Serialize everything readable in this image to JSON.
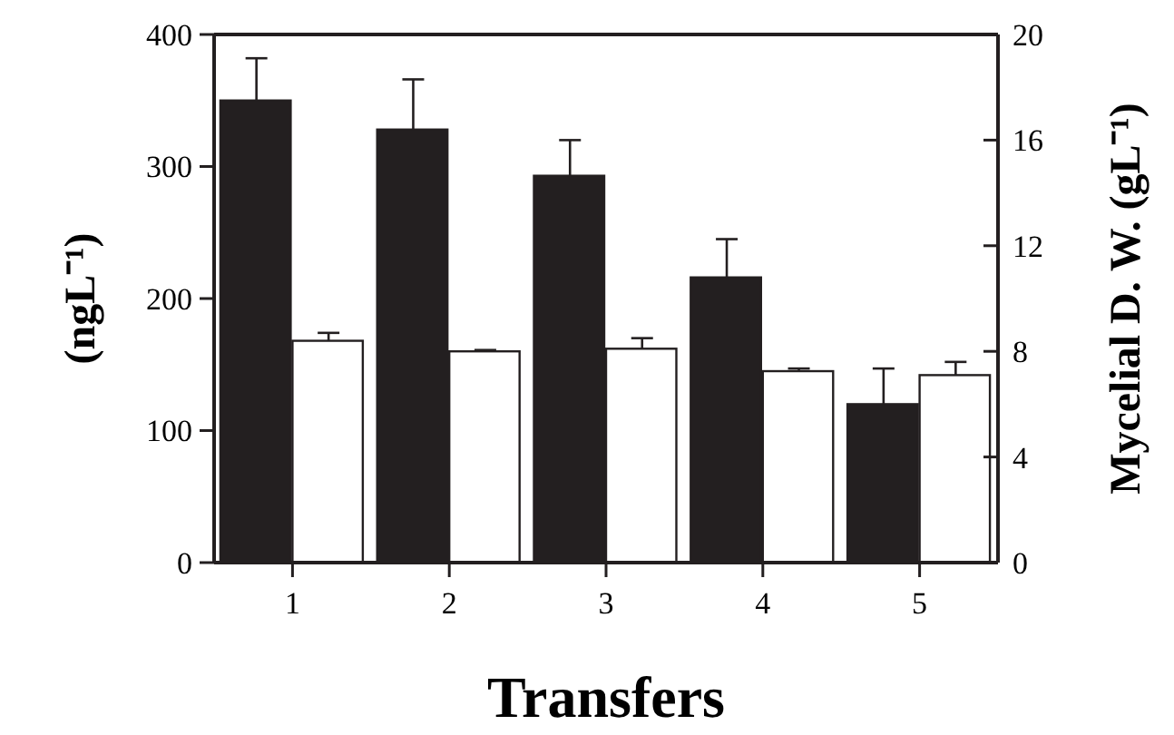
{
  "chart_data": {
    "type": "bar",
    "categories": [
      "1",
      "2",
      "3",
      "4",
      "5"
    ],
    "xlabel": "Transfers",
    "ylabel": "(ngL⁻¹)",
    "y2label": "Mycelial D. W. (gL⁻¹)",
    "ylim": [
      0,
      400
    ],
    "yticks": [
      0,
      100,
      200,
      300,
      400
    ],
    "y2lim": [
      0,
      20
    ],
    "y2ticks": [
      0,
      4,
      8,
      12,
      16,
      20
    ],
    "series": [
      {
        "color": "#231f20",
        "values": [
          350,
          328,
          293,
          216,
          120
        ],
        "errors": [
          [
            350,
            382
          ],
          [
            328,
            366
          ],
          [
            293,
            320
          ],
          [
            216,
            245
          ],
          [
            120,
            147
          ]
        ]
      },
      {
        "color": "#ffffff",
        "axis": "y2",
        "values": [
          8.4,
          8.0,
          8.1,
          7.25,
          7.1
        ],
        "errors": [
          [
            8.4,
            8.7
          ],
          [
            8.0,
            8.05
          ],
          [
            8.1,
            8.5
          ],
          [
            7.25,
            7.35
          ],
          [
            7.1,
            7.6
          ]
        ]
      }
    ]
  }
}
